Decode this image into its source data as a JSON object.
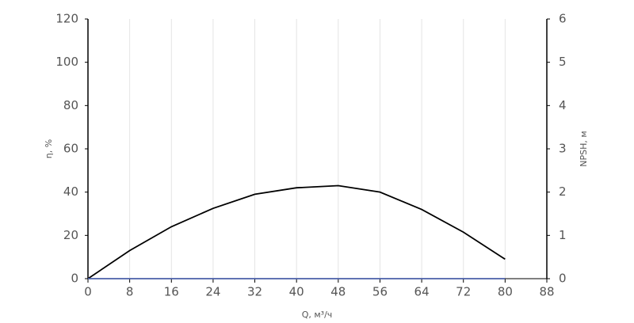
{
  "chart_data": {
    "type": "line",
    "x_label": "Q, м³/ч",
    "y_label": "η, %",
    "y2_label": "NPSH, м",
    "x": [
      0,
      8,
      16,
      24,
      32,
      40,
      48,
      56,
      64,
      72,
      80
    ],
    "series": [
      {
        "name": "η",
        "color": "#000000",
        "values": [
          0,
          13,
          24,
          32.5,
          39,
          42,
          43,
          40,
          32,
          21.5,
          9
        ]
      },
      {
        "name": "NPSH",
        "color": "#4a5fa8",
        "axis": "y2",
        "values": [
          0,
          0,
          0,
          0,
          0,
          0,
          0,
          0,
          0,
          0,
          0
        ]
      }
    ],
    "xlim": [
      0,
      88
    ],
    "xticks": [
      0,
      8,
      16,
      24,
      32,
      40,
      48,
      56,
      64,
      72,
      80,
      88
    ],
    "ylim": [
      0,
      120
    ],
    "yticks": [
      0,
      20,
      40,
      60,
      80,
      100,
      120
    ],
    "y2lim": [
      0,
      6
    ],
    "y2ticks": [
      0,
      1,
      2,
      3,
      4,
      5,
      6
    ],
    "grid": true
  }
}
